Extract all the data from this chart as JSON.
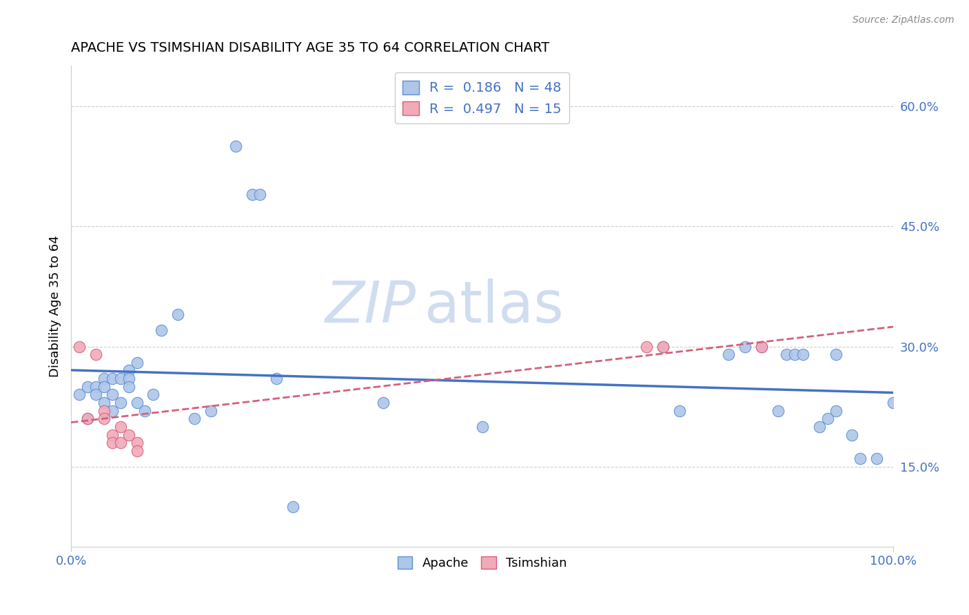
{
  "title": "APACHE VS TSIMSHIAN DISABILITY AGE 35 TO 64 CORRELATION CHART",
  "source": "Source: ZipAtlas.com",
  "ylabel": "Disability Age 35 to 64",
  "xlim": [
    0.0,
    1.0
  ],
  "ylim": [
    0.05,
    0.65
  ],
  "yticks": [
    0.15,
    0.3,
    0.45,
    0.6
  ],
  "ytick_labels": [
    "15.0%",
    "30.0%",
    "45.0%",
    "60.0%"
  ],
  "xticks": [
    0.0,
    1.0
  ],
  "xtick_labels": [
    "0.0%",
    "100.0%"
  ],
  "apache_R": 0.186,
  "apache_N": 48,
  "tsimshian_R": 0.497,
  "tsimshian_N": 15,
  "apache_color": "#aec6e8",
  "tsimshian_color": "#f2aab8",
  "apache_edge_color": "#5b8fd4",
  "tsimshian_edge_color": "#d4607a",
  "apache_line_color": "#4472c4",
  "tsimshian_line_color": "#d4607a",
  "watermark_color": "#d0ddf0",
  "background_color": "#ffffff",
  "grid_color": "#cccccc",
  "tick_label_color": "#4472c4",
  "apache_x": [
    0.01,
    0.02,
    0.02,
    0.03,
    0.03,
    0.04,
    0.04,
    0.04,
    0.05,
    0.05,
    0.05,
    0.06,
    0.06,
    0.07,
    0.07,
    0.07,
    0.08,
    0.08,
    0.09,
    0.1,
    0.11,
    0.13,
    0.15,
    0.17,
    0.2,
    0.22,
    0.23,
    0.25,
    0.27,
    0.38,
    0.5,
    0.72,
    0.74,
    0.8,
    0.82,
    0.84,
    0.86,
    0.87,
    0.88,
    0.89,
    0.91,
    0.92,
    0.93,
    0.93,
    0.95,
    0.96,
    0.98,
    1.0
  ],
  "apache_y": [
    0.24,
    0.25,
    0.21,
    0.25,
    0.24,
    0.26,
    0.25,
    0.23,
    0.26,
    0.24,
    0.22,
    0.26,
    0.23,
    0.27,
    0.26,
    0.25,
    0.23,
    0.28,
    0.22,
    0.24,
    0.32,
    0.34,
    0.21,
    0.22,
    0.55,
    0.49,
    0.49,
    0.26,
    0.1,
    0.23,
    0.2,
    0.3,
    0.22,
    0.29,
    0.3,
    0.3,
    0.22,
    0.29,
    0.29,
    0.29,
    0.2,
    0.21,
    0.29,
    0.22,
    0.19,
    0.16,
    0.16,
    0.23
  ],
  "tsimshian_x": [
    0.01,
    0.02,
    0.03,
    0.04,
    0.04,
    0.05,
    0.05,
    0.06,
    0.06,
    0.07,
    0.08,
    0.08,
    0.7,
    0.72,
    0.84
  ],
  "tsimshian_y": [
    0.3,
    0.21,
    0.29,
    0.22,
    0.21,
    0.19,
    0.18,
    0.2,
    0.18,
    0.19,
    0.18,
    0.17,
    0.3,
    0.3,
    0.3
  ]
}
